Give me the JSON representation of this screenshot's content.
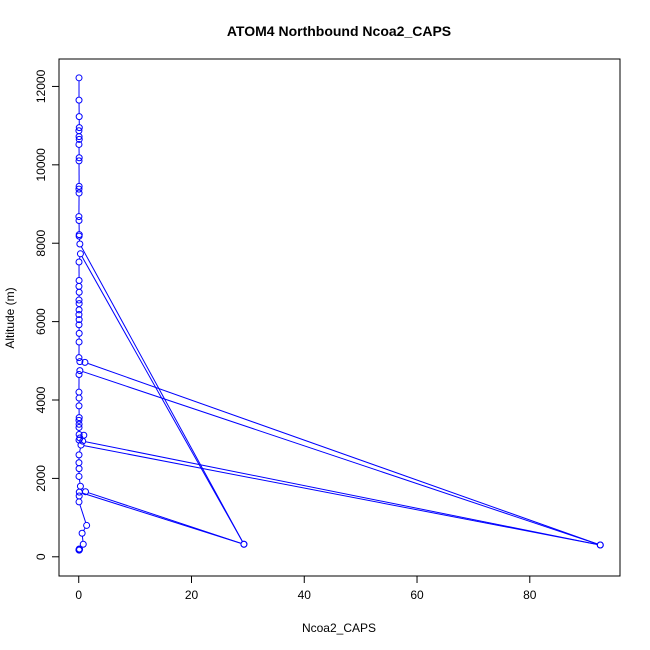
{
  "chart_data": {
    "type": "line",
    "title": "ATOM4 Northbound Ncoa2_CAPS",
    "xlabel": "Ncoa2_CAPS",
    "ylabel": "Altitude (m)",
    "xlim": [
      -3.5,
      96
    ],
    "ylim": [
      -490,
      12700
    ],
    "xticks": [
      0,
      20,
      40,
      60,
      80
    ],
    "yticks": [
      0,
      2000,
      4000,
      6000,
      8000,
      10000,
      12000
    ],
    "grid": false,
    "legend": "none",
    "series": [
      {
        "color": "#0000ff",
        "marker": "open-circle",
        "points": [
          [
            0.05,
            12220
          ],
          [
            0.05,
            11650
          ],
          [
            0.08,
            11230
          ],
          [
            0.1,
            10950
          ],
          [
            0.03,
            10870
          ],
          [
            0.06,
            10720
          ],
          [
            0.09,
            10650
          ],
          [
            0.04,
            10520
          ],
          [
            0.08,
            10180
          ],
          [
            0.05,
            10100
          ],
          [
            0.07,
            9450
          ],
          [
            0.04,
            9380
          ],
          [
            0.06,
            9280
          ],
          [
            0.03,
            8680
          ],
          [
            0.05,
            8580
          ],
          [
            0.09,
            8220
          ],
          [
            0.07,
            8180
          ],
          [
            0.2,
            7980
          ],
          [
            29.3,
            320
          ],
          [
            0.3,
            7730
          ],
          [
            0.05,
            7520
          ],
          [
            0.06,
            7050
          ],
          [
            0.04,
            6900
          ],
          [
            0.08,
            6750
          ],
          [
            0.05,
            6550
          ],
          [
            0.07,
            6460
          ],
          [
            0.06,
            6300
          ],
          [
            0.04,
            6180
          ],
          [
            0.07,
            6050
          ],
          [
            0.05,
            5920
          ],
          [
            0.08,
            5700
          ],
          [
            0.06,
            5480
          ],
          [
            0.04,
            5080
          ],
          [
            0.2,
            4980
          ],
          [
            1.1,
            4960
          ],
          [
            92.5,
            300
          ],
          [
            0.2,
            4750
          ],
          [
            0.05,
            4650
          ],
          [
            0.04,
            4200
          ],
          [
            0.06,
            4050
          ],
          [
            0.05,
            3850
          ],
          [
            0.08,
            3550
          ],
          [
            0.04,
            3480
          ],
          [
            0.06,
            3380
          ],
          [
            0.05,
            3300
          ],
          [
            0.07,
            3120
          ],
          [
            0.2,
            3030
          ],
          [
            0.05,
            2980
          ],
          [
            0.9,
            3100
          ],
          [
            0.7,
            2950
          ],
          [
            92.5,
            300
          ],
          [
            0.4,
            2850
          ],
          [
            0.05,
            2600
          ],
          [
            0.04,
            2400
          ],
          [
            0.06,
            2250
          ],
          [
            0.05,
            2050
          ],
          [
            0.3,
            1800
          ],
          [
            1.2,
            1660
          ],
          [
            29.3,
            320
          ],
          [
            0.1,
            1650
          ],
          [
            0.08,
            1550
          ],
          [
            0.05,
            1400
          ],
          [
            1.4,
            800
          ],
          [
            0.6,
            600
          ],
          [
            0.8,
            320
          ],
          [
            0.1,
            200
          ],
          [
            0.05,
            180
          ],
          [
            0.08,
            170
          ],
          [
            0.15,
            190
          ],
          [
            0.05,
            175
          ]
        ]
      }
    ]
  }
}
